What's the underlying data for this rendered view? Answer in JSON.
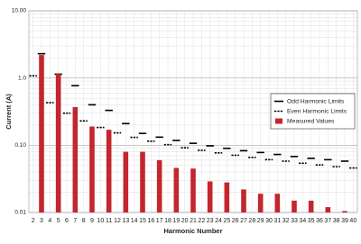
{
  "chart_data": {
    "type": "bar",
    "x_label": "Harmonic Number",
    "y_label": "Current (A)",
    "categories": [
      "2",
      "3",
      "4",
      "5",
      "6",
      "7",
      "8",
      "9",
      "10",
      "11",
      "12",
      "13",
      "14",
      "15",
      "16",
      "17",
      "18",
      "19",
      "20",
      "21",
      "22",
      "23",
      "24",
      "25",
      "26",
      "27",
      "28",
      "29",
      "30",
      "31",
      "32",
      "33",
      "34",
      "35",
      "36",
      "37",
      "38",
      "39",
      "40"
    ],
    "series": [
      {
        "name": "Odd Harmonic Limits",
        "color": "#000000",
        "style": "solid-line",
        "values": [
          null,
          2.3,
          null,
          1.14,
          null,
          0.77,
          null,
          0.4,
          null,
          0.33,
          null,
          0.21,
          null,
          0.15,
          null,
          0.132,
          null,
          0.118,
          null,
          0.107,
          null,
          0.098,
          null,
          0.09,
          null,
          0.083,
          null,
          0.078,
          null,
          0.073,
          null,
          0.068,
          null,
          0.064,
          null,
          0.061,
          null,
          0.058,
          null
        ]
      },
      {
        "name": "Even Harmonic Limits",
        "color": "#000000",
        "style": "dashed-line",
        "values": [
          1.08,
          null,
          0.43,
          null,
          0.3,
          null,
          0.23,
          null,
          0.184,
          null,
          0.153,
          null,
          0.131,
          null,
          0.115,
          null,
          0.102,
          null,
          0.092,
          null,
          0.084,
          null,
          0.077,
          null,
          0.071,
          null,
          0.066,
          null,
          0.061,
          null,
          0.058,
          null,
          0.054,
          null,
          0.051,
          null,
          0.048,
          null,
          0.046
        ]
      },
      {
        "name": "Measured Values",
        "color": "#c4262e",
        "style": "bar",
        "values": [
          null,
          2.2,
          null,
          1.15,
          null,
          0.37,
          null,
          0.19,
          null,
          0.17,
          null,
          0.08,
          null,
          0.08,
          null,
          0.06,
          null,
          0.046,
          null,
          0.045,
          null,
          0.029,
          null,
          0.028,
          null,
          0.022,
          null,
          0.019,
          null,
          0.019,
          null,
          0.015,
          null,
          0.015,
          null,
          0.012,
          null,
          0.0105,
          null
        ]
      }
    ],
    "ylim": [
      0.01,
      10
    ],
    "yticks": [
      {
        "value": 0.01,
        "label": "0.01"
      },
      {
        "value": 0.1,
        "label": "0.10"
      },
      {
        "value": 1,
        "label": "1.0"
      },
      {
        "value": 10,
        "label": "10.00"
      }
    ],
    "log_y": true,
    "grid": true,
    "legend": "right"
  }
}
